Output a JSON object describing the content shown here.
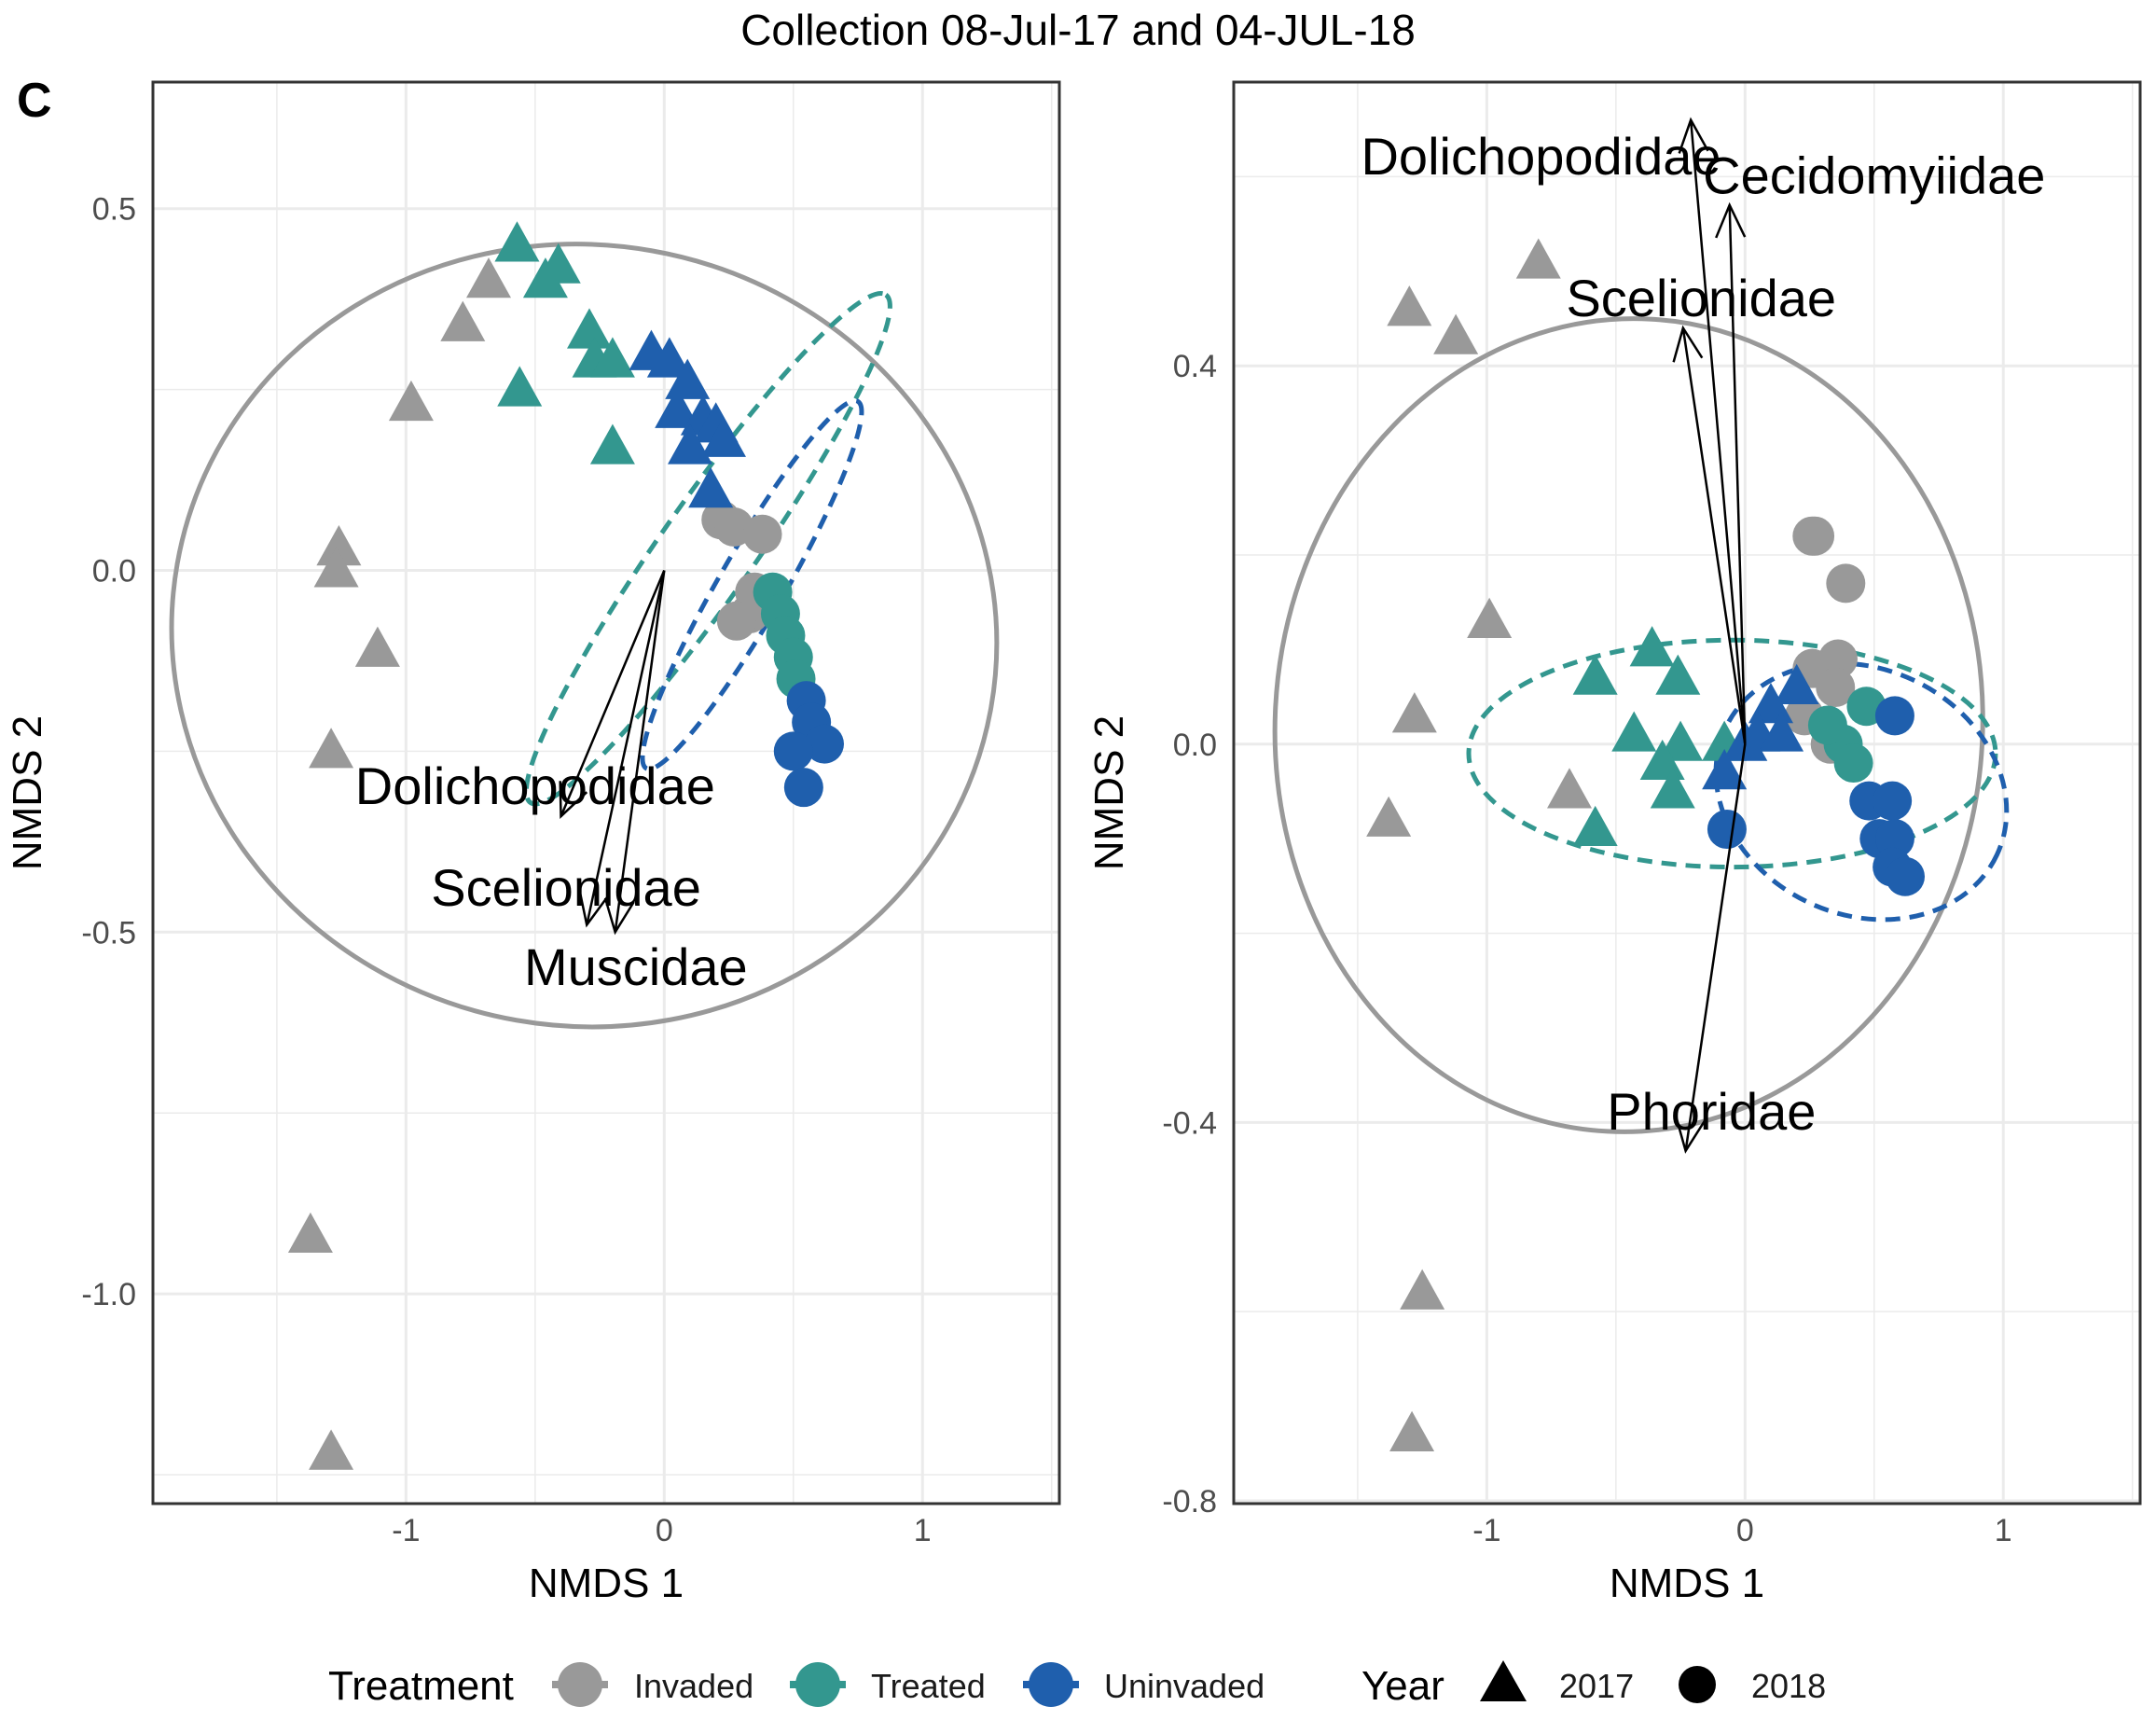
{
  "figure": {
    "title": "Collection 08-Jul-17 and 04-JUL-18",
    "panel_letter": "C"
  },
  "colors": {
    "Invaded": "#999999",
    "Treated": "#33978f",
    "Uninvaded": "#1f5fad",
    "grid": "#ebebeb",
    "frame": "#333333",
    "arrow": "#000000"
  },
  "legend": {
    "treatment_title": "Treatment",
    "treatment_items": [
      "Invaded",
      "Treated",
      "Uninvaded"
    ],
    "year_title": "Year",
    "year_items": [
      {
        "label": "2017",
        "shape": "triangle"
      },
      {
        "label": "2018",
        "shape": "circle"
      }
    ]
  },
  "chart_data": [
    {
      "type": "scatter",
      "xlabel": "NMDS 1",
      "ylabel": "NMDS 2",
      "xlim": [
        -1.98,
        1.53
      ],
      "ylim": [
        -1.29,
        0.675
      ],
      "x_ticks": [
        -1,
        0,
        1
      ],
      "x_tick_labels": [
        "-1",
        "0",
        "1"
      ],
      "y_ticks": [
        0.5,
        0.0,
        -0.5,
        -1.0
      ],
      "y_tick_labels": [
        "0.5",
        "0.0",
        "-0.5",
        "-1.0"
      ],
      "grid": true,
      "points": [
        {
          "x": -0.68,
          "y": 0.4,
          "group": "Invaded",
          "year": "2017"
        },
        {
          "x": -0.78,
          "y": 0.34,
          "group": "Invaded",
          "year": "2017"
        },
        {
          "x": -0.98,
          "y": 0.23,
          "group": "Invaded",
          "year": "2017"
        },
        {
          "x": -1.26,
          "y": 0.03,
          "group": "Invaded",
          "year": "2017"
        },
        {
          "x": -1.27,
          "y": 0.0,
          "group": "Invaded",
          "year": "2017"
        },
        {
          "x": -1.11,
          "y": -0.11,
          "group": "Invaded",
          "year": "2017"
        },
        {
          "x": -1.29,
          "y": -0.25,
          "group": "Invaded",
          "year": "2017"
        },
        {
          "x": -1.37,
          "y": -0.92,
          "group": "Invaded",
          "year": "2017"
        },
        {
          "x": -1.29,
          "y": -1.22,
          "group": "Invaded",
          "year": "2017"
        },
        {
          "x": 0.22,
          "y": 0.07,
          "group": "Invaded",
          "year": "2018"
        },
        {
          "x": 0.27,
          "y": 0.06,
          "group": "Invaded",
          "year": "2018"
        },
        {
          "x": 0.38,
          "y": 0.05,
          "group": "Invaded",
          "year": "2018"
        },
        {
          "x": 0.35,
          "y": -0.03,
          "group": "Invaded",
          "year": "2018"
        },
        {
          "x": 0.33,
          "y": -0.06,
          "group": "Invaded",
          "year": "2018"
        },
        {
          "x": 0.28,
          "y": -0.07,
          "group": "Invaded",
          "year": "2018"
        },
        {
          "x": -0.57,
          "y": 0.45,
          "group": "Treated",
          "year": "2017"
        },
        {
          "x": -0.41,
          "y": 0.42,
          "group": "Treated",
          "year": "2017"
        },
        {
          "x": -0.46,
          "y": 0.4,
          "group": "Treated",
          "year": "2017"
        },
        {
          "x": -0.29,
          "y": 0.33,
          "group": "Treated",
          "year": "2017"
        },
        {
          "x": -0.27,
          "y": 0.29,
          "group": "Treated",
          "year": "2017"
        },
        {
          "x": -0.56,
          "y": 0.25,
          "group": "Treated",
          "year": "2017"
        },
        {
          "x": -0.2,
          "y": 0.29,
          "group": "Treated",
          "year": "2017"
        },
        {
          "x": -0.2,
          "y": 0.17,
          "group": "Treated",
          "year": "2017"
        },
        {
          "x": 0.42,
          "y": -0.03,
          "group": "Treated",
          "year": "2018"
        },
        {
          "x": 0.45,
          "y": -0.06,
          "group": "Treated",
          "year": "2018"
        },
        {
          "x": 0.47,
          "y": -0.09,
          "group": "Treated",
          "year": "2018"
        },
        {
          "x": 0.5,
          "y": -0.12,
          "group": "Treated",
          "year": "2018"
        },
        {
          "x": 0.51,
          "y": -0.15,
          "group": "Treated",
          "year": "2018"
        },
        {
          "x": -0.05,
          "y": 0.3,
          "group": "Uninvaded",
          "year": "2017"
        },
        {
          "x": 0.02,
          "y": 0.29,
          "group": "Uninvaded",
          "year": "2017"
        },
        {
          "x": 0.09,
          "y": 0.26,
          "group": "Uninvaded",
          "year": "2017"
        },
        {
          "x": 0.05,
          "y": 0.22,
          "group": "Uninvaded",
          "year": "2017"
        },
        {
          "x": 0.15,
          "y": 0.21,
          "group": "Uninvaded",
          "year": "2017"
        },
        {
          "x": 0.2,
          "y": 0.2,
          "group": "Uninvaded",
          "year": "2017"
        },
        {
          "x": 0.23,
          "y": 0.18,
          "group": "Uninvaded",
          "year": "2017"
        },
        {
          "x": 0.1,
          "y": 0.17,
          "group": "Uninvaded",
          "year": "2017"
        },
        {
          "x": 0.18,
          "y": 0.11,
          "group": "Uninvaded",
          "year": "2017"
        },
        {
          "x": 0.55,
          "y": -0.18,
          "group": "Uninvaded",
          "year": "2018"
        },
        {
          "x": 0.57,
          "y": -0.21,
          "group": "Uninvaded",
          "year": "2018"
        },
        {
          "x": 0.62,
          "y": -0.24,
          "group": "Uninvaded",
          "year": "2018"
        },
        {
          "x": 0.5,
          "y": -0.25,
          "group": "Uninvaded",
          "year": "2018"
        },
        {
          "x": 0.54,
          "y": -0.3,
          "group": "Uninvaded",
          "year": "2018"
        }
      ],
      "ellipses": [
        {
          "group": "Invaded",
          "cx": -0.31,
          "cy": -0.09,
          "rx": 1.6,
          "ry": 0.54,
          "rot": -10,
          "dashed": false
        },
        {
          "group": "Treated",
          "cx": 0.17,
          "cy": 0.03,
          "rx": 1.2,
          "ry": 0.065,
          "rot": 55,
          "dashed": true
        },
        {
          "group": "Uninvaded",
          "cx": 0.34,
          "cy": -0.02,
          "rx": 0.82,
          "ry": 0.045,
          "rot": 60,
          "dashed": true
        }
      ],
      "arrows": [
        {
          "label": "Dolichopodidae",
          "x": -0.4,
          "y": -0.34,
          "label_x": -0.5,
          "label_y": -0.3
        },
        {
          "label": "Scelionidae",
          "x": -0.3,
          "y": -0.49,
          "label_x": -0.38,
          "label_y": -0.44
        },
        {
          "label": "Muscidae",
          "x": -0.19,
          "y": -0.5,
          "label_x": -0.11,
          "label_y": -0.55
        }
      ]
    },
    {
      "type": "scatter",
      "xlabel": "NMDS 1",
      "ylabel": "NMDS 2",
      "xlim": [
        -1.98,
        1.53
      ],
      "ylim": [
        -0.803,
        0.7
      ],
      "x_ticks": [
        -1,
        0,
        1
      ],
      "x_tick_labels": [
        "-1",
        "0",
        "1"
      ],
      "y_ticks": [
        0.4,
        0.0,
        -0.4,
        -0.8
      ],
      "y_tick_labels": [
        "0.4",
        "0.0",
        "-0.4",
        "-0.8"
      ],
      "grid": true,
      "points": [
        {
          "x": -0.8,
          "y": 0.51,
          "group": "Invaded",
          "year": "2017"
        },
        {
          "x": -1.3,
          "y": 0.46,
          "group": "Invaded",
          "year": "2017"
        },
        {
          "x": -1.12,
          "y": 0.43,
          "group": "Invaded",
          "year": "2017"
        },
        {
          "x": -0.99,
          "y": 0.13,
          "group": "Invaded",
          "year": "2017"
        },
        {
          "x": -1.28,
          "y": 0.03,
          "group": "Invaded",
          "year": "2017"
        },
        {
          "x": -0.68,
          "y": -0.05,
          "group": "Invaded",
          "year": "2017"
        },
        {
          "x": -1.38,
          "y": -0.08,
          "group": "Invaded",
          "year": "2017"
        },
        {
          "x": -1.25,
          "y": -0.58,
          "group": "Invaded",
          "year": "2017"
        },
        {
          "x": -1.29,
          "y": -0.73,
          "group": "Invaded",
          "year": "2017"
        },
        {
          "x": 0.26,
          "y": 0.22,
          "group": "Invaded",
          "year": "2018"
        },
        {
          "x": 0.27,
          "y": 0.22,
          "group": "Invaded",
          "year": "2018"
        },
        {
          "x": 0.39,
          "y": 0.17,
          "group": "Invaded",
          "year": "2018"
        },
        {
          "x": 0.36,
          "y": 0.09,
          "group": "Invaded",
          "year": "2018"
        },
        {
          "x": 0.26,
          "y": 0.08,
          "group": "Invaded",
          "year": "2018"
        },
        {
          "x": 0.35,
          "y": 0.06,
          "group": "Invaded",
          "year": "2018"
        },
        {
          "x": 0.23,
          "y": 0.03,
          "group": "Invaded",
          "year": "2018"
        },
        {
          "x": 0.33,
          "y": 0.0,
          "group": "Invaded",
          "year": "2018"
        },
        {
          "x": -0.36,
          "y": 0.1,
          "group": "Treated",
          "year": "2017"
        },
        {
          "x": -0.58,
          "y": 0.07,
          "group": "Treated",
          "year": "2017"
        },
        {
          "x": -0.26,
          "y": 0.07,
          "group": "Treated",
          "year": "2017"
        },
        {
          "x": -0.43,
          "y": 0.01,
          "group": "Treated",
          "year": "2017"
        },
        {
          "x": -0.25,
          "y": 0.0,
          "group": "Treated",
          "year": "2017"
        },
        {
          "x": -0.08,
          "y": 0.0,
          "group": "Treated",
          "year": "2017"
        },
        {
          "x": -0.32,
          "y": -0.02,
          "group": "Treated",
          "year": "2017"
        },
        {
          "x": -0.28,
          "y": -0.05,
          "group": "Treated",
          "year": "2017"
        },
        {
          "x": -0.58,
          "y": -0.09,
          "group": "Treated",
          "year": "2017"
        },
        {
          "x": 0.47,
          "y": 0.04,
          "group": "Treated",
          "year": "2018"
        },
        {
          "x": 0.38,
          "y": 0.0,
          "group": "Treated",
          "year": "2018"
        },
        {
          "x": 0.42,
          "y": -0.02,
          "group": "Treated",
          "year": "2018"
        },
        {
          "x": 0.32,
          "y": 0.02,
          "group": "Treated",
          "year": "2018"
        },
        {
          "x": 0.2,
          "y": 0.06,
          "group": "Uninvaded",
          "year": "2017"
        },
        {
          "x": 0.1,
          "y": 0.04,
          "group": "Uninvaded",
          "year": "2017"
        },
        {
          "x": 0.05,
          "y": 0.01,
          "group": "Uninvaded",
          "year": "2017"
        },
        {
          "x": 0.14,
          "y": 0.01,
          "group": "Uninvaded",
          "year": "2017"
        },
        {
          "x": 0.0,
          "y": 0.0,
          "group": "Uninvaded",
          "year": "2017"
        },
        {
          "x": -0.08,
          "y": -0.03,
          "group": "Uninvaded",
          "year": "2017"
        },
        {
          "x": -0.07,
          "y": -0.09,
          "group": "Uninvaded",
          "year": "2018"
        },
        {
          "x": 0.58,
          "y": 0.03,
          "group": "Uninvaded",
          "year": "2018"
        },
        {
          "x": 0.48,
          "y": -0.06,
          "group": "Uninvaded",
          "year": "2018"
        },
        {
          "x": 0.57,
          "y": -0.06,
          "group": "Uninvaded",
          "year": "2018"
        },
        {
          "x": 0.52,
          "y": -0.1,
          "group": "Uninvaded",
          "year": "2018"
        },
        {
          "x": 0.58,
          "y": -0.1,
          "group": "Uninvaded",
          "year": "2018"
        },
        {
          "x": 0.57,
          "y": -0.13,
          "group": "Uninvaded",
          "year": "2018"
        },
        {
          "x": 0.62,
          "y": -0.14,
          "group": "Uninvaded",
          "year": "2018"
        }
      ],
      "ellipses": [
        {
          "group": "Invaded",
          "cx": -0.45,
          "cy": 0.02,
          "rx": 1.37,
          "ry": 0.43,
          "rot": -3,
          "dashed": false
        },
        {
          "group": "Treated",
          "cx": -0.05,
          "cy": -0.01,
          "rx": 1.02,
          "ry": 0.12,
          "rot": 0,
          "dashed": true
        },
        {
          "group": "Uninvaded",
          "cx": 0.45,
          "cy": -0.05,
          "rx": 0.58,
          "ry": 0.13,
          "rot": -25,
          "dashed": true
        }
      ],
      "arrows": [
        {
          "label": "Dolichopodidae",
          "x": -0.21,
          "y": 0.66,
          "label_x": -0.79,
          "label_y": 0.62
        },
        {
          "label": "Cecidomyiidae",
          "x": -0.06,
          "y": 0.57,
          "label_x": 0.5,
          "label_y": 0.6
        },
        {
          "label": "Scelionidae",
          "x": -0.24,
          "y": 0.44,
          "label_x": -0.17,
          "label_y": 0.47
        },
        {
          "label": "Phoridae",
          "x": -0.23,
          "y": -0.43,
          "label_x": -0.13,
          "label_y": -0.39
        }
      ]
    }
  ]
}
